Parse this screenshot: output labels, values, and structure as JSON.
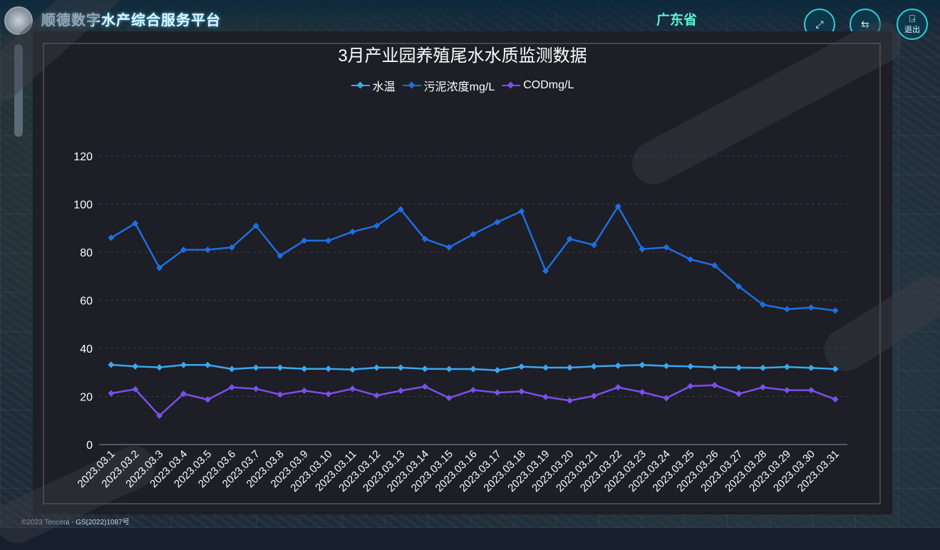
{
  "app": {
    "title": "顺德数字水产综合服务平台",
    "province": "广东省"
  },
  "toolbar": {
    "fullscreen_icon": "fullscreen-icon",
    "switch_icon": "switch-icon",
    "exit_icon": "exit-icon",
    "exit_label": "退出"
  },
  "map": {
    "credit": "©2023 Tencent - GS(2022)1087号"
  },
  "colors": {
    "water_temp": "#3aa8f0",
    "sludge": "#1f6ee0",
    "cod": "#7b4fe8",
    "panel_bg": "#1d1e26"
  },
  "chart_data": {
    "type": "line",
    "title": "3月产业园养殖尾水水质监测数据",
    "xlabel": "",
    "ylabel": "",
    "ylim": [
      0,
      120
    ],
    "yticks": [
      "0",
      "20",
      "40",
      "60",
      "80",
      "100",
      "120"
    ],
    "grid": true,
    "legend_position": "top",
    "categories": [
      "2023.03.1",
      "2023.03.2",
      "2023.03.3",
      "2023.03.4",
      "2023.03.5",
      "2023.03.6",
      "2023.03.7",
      "2023.03.8",
      "2023.03.9",
      "2023.03.10",
      "2023.03.11",
      "2023.03.12",
      "2023.03.13",
      "2023.03.14",
      "2023.03.15",
      "2023.03.16",
      "2023.03.17",
      "2023.03.18",
      "2023.03.19",
      "2023.03.20",
      "2023.03.21",
      "2023.03.22",
      "2023.03.23",
      "2023.03.24",
      "2023.03.25",
      "2023.03.26",
      "2023.03.27",
      "2023.03.28",
      "2023.03.29",
      "2023.03.30",
      "2023.03.31"
    ],
    "series": [
      {
        "name": "水温",
        "color": "#3aa8f0",
        "values": [
          33.2,
          32.5,
          32.1,
          33.1,
          33.1,
          31.4,
          32.0,
          32.0,
          31.5,
          31.5,
          31.2,
          32.0,
          32.0,
          31.5,
          31.4,
          31.4,
          30.9,
          32.4,
          32.0,
          32.0,
          32.5,
          32.8,
          33.1,
          32.7,
          32.5,
          32.1,
          32.0,
          31.9,
          32.3,
          31.9,
          31.4
        ]
      },
      {
        "name": "污泥浓度mg/L",
        "color": "#1f6ee0",
        "values": [
          86.0,
          92.0,
          73.5,
          81.0,
          81.0,
          82.0,
          91.0,
          78.5,
          84.8,
          84.8,
          88.5,
          91.0,
          97.8,
          85.5,
          82.0,
          87.5,
          92.5,
          97.0,
          72.2,
          85.5,
          83.0,
          99.0,
          81.3,
          82.0,
          77.0,
          74.5,
          65.8,
          58.2,
          56.3,
          57.0,
          55.7
        ]
      },
      {
        "name": "CODmg/L",
        "color": "#7b4fe8",
        "values": [
          21.3,
          23.0,
          12.0,
          21.1,
          18.7,
          23.8,
          23.2,
          20.8,
          22.4,
          21.0,
          23.2,
          20.4,
          22.4,
          24.1,
          19.4,
          22.7,
          21.6,
          22.1,
          19.8,
          18.3,
          20.2,
          23.8,
          21.8,
          19.3,
          24.3,
          24.7,
          21.1,
          23.8,
          22.6,
          22.6,
          18.8
        ]
      }
    ]
  }
}
